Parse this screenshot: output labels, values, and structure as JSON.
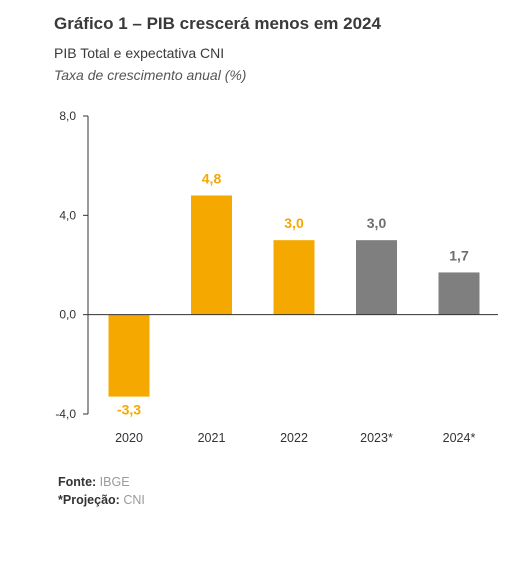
{
  "header": {
    "title": "Gráfico 1 – PIB crescerá menos em 2024",
    "subtitle": "PIB Total e expectativa CNI",
    "units": "Taxa de crescimento anual (%)"
  },
  "chart_data": {
    "type": "bar",
    "categories": [
      "2020",
      "2021",
      "2022",
      "2023*",
      "2024*"
    ],
    "values": [
      -3.3,
      4.8,
      3.0,
      3.0,
      1.7
    ],
    "value_labels": [
      "-3,3",
      "4,8",
      "3,0",
      "3,0",
      "1,7"
    ],
    "bar_colors": [
      "#F5A800",
      "#F5A800",
      "#F5A800",
      "#7F7F7F",
      "#7F7F7F"
    ],
    "label_colors": [
      "#F5A800",
      "#F5A800",
      "#F5A800",
      "#6E6E6E",
      "#6E6E6E"
    ],
    "yticks": [
      -4.0,
      0.0,
      4.0,
      8.0
    ],
    "ytick_labels": [
      "-4,0",
      "0,0",
      "4,0",
      "8,0"
    ],
    "ylim": [
      -4.0,
      8.0
    ],
    "axis_color": "#333333",
    "grid": false
  },
  "footer": {
    "source_label": "Fonte:",
    "source_value": "IBGE",
    "projection_label": "*Projeção:",
    "projection_value": "CNI"
  }
}
